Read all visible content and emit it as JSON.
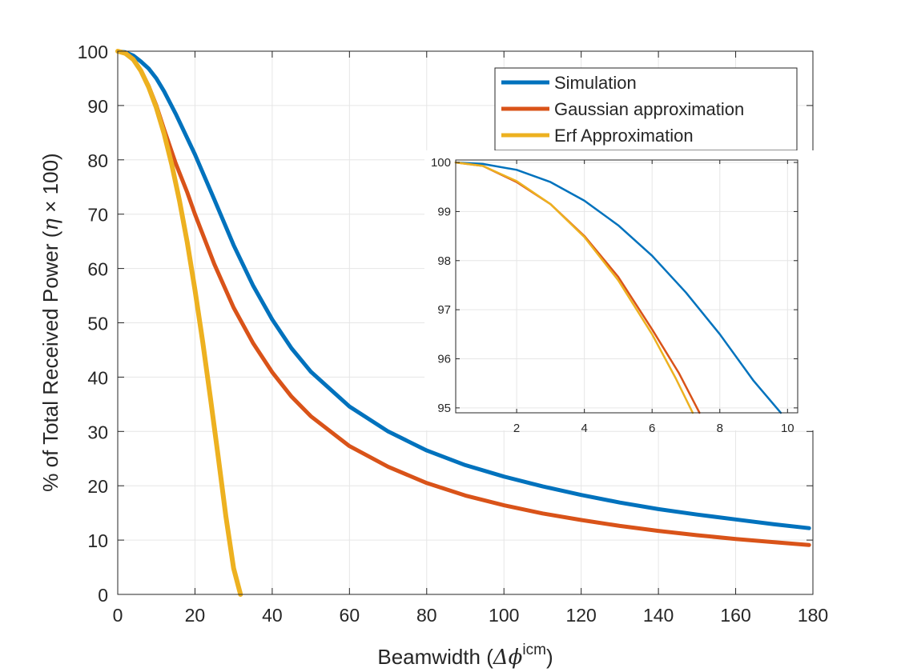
{
  "chart_data": [
    {
      "type": "line",
      "title": "",
      "xlabel": "Beamwidth (Δϕicm)",
      "xlabel_parts": {
        "main": "Beamwidth (",
        "symbol": "Δϕ",
        "superscript": "icm",
        "close": ")"
      },
      "ylabel": "% of Total Received Power (η × 100)",
      "ylabel_parts": {
        "main": "% of Total Received Power (",
        "eta": "η",
        "rest": " × 100)"
      },
      "xlim": [
        0,
        180
      ],
      "ylim": [
        0,
        100
      ],
      "xticks": [
        0,
        20,
        40,
        60,
        80,
        100,
        120,
        140,
        160,
        180
      ],
      "yticks": [
        0,
        10,
        20,
        30,
        40,
        50,
        60,
        70,
        80,
        90,
        100
      ],
      "grid": true,
      "legend_position": "top-right",
      "series": [
        {
          "name": "Simulation",
          "color": "#0072bd",
          "x": [
            0,
            2,
            4,
            6,
            8,
            10,
            12,
            15,
            20,
            25,
            30,
            35,
            40,
            45,
            50,
            60,
            70,
            80,
            90,
            100,
            110,
            120,
            130,
            140,
            150,
            160,
            170,
            179
          ],
          "y": [
            100,
            99.8,
            99.2,
            98.1,
            96.8,
            95.0,
            92.6,
            88.5,
            81.0,
            72.7,
            64.3,
            56.9,
            50.6,
            45.3,
            41.0,
            34.6,
            30.0,
            26.5,
            23.8,
            21.7,
            19.9,
            18.3,
            16.9,
            15.7,
            14.7,
            13.8,
            12.9,
            12.2
          ]
        },
        {
          "name": "Gaussian approximation",
          "color": "#d95319",
          "x": [
            0,
            2,
            4,
            6,
            8,
            10,
            12,
            15,
            18,
            20,
            25,
            30,
            35,
            40,
            45,
            50,
            60,
            70,
            80,
            90,
            100,
            110,
            120,
            130,
            140,
            150,
            160,
            170,
            179
          ],
          "y": [
            100,
            99.7,
            98.6,
            96.4,
            93.6,
            90.0,
            85.6,
            79.4,
            74.0,
            70.0,
            60.8,
            52.8,
            46.3,
            40.9,
            36.4,
            32.8,
            27.3,
            23.5,
            20.5,
            18.2,
            16.4,
            14.9,
            13.7,
            12.6,
            11.7,
            10.9,
            10.2,
            9.6,
            9.1
          ]
        },
        {
          "name": "Erf Approximation",
          "color": "#edb120",
          "x": [
            0,
            2,
            4,
            6,
            8,
            10,
            12,
            14,
            16,
            18,
            20,
            22,
            24,
            26,
            28,
            30,
            31.8
          ],
          "y": [
            100,
            99.6,
            98.5,
            96.4,
            93.4,
            89.6,
            84.8,
            79.1,
            72.4,
            64.8,
            56.1,
            46.5,
            36.2,
            25.4,
            14.4,
            4.8,
            0
          ]
        }
      ]
    },
    {
      "type": "line",
      "title": "",
      "xlabel": "",
      "ylabel": "",
      "xlim": [
        0.2,
        10.3
      ],
      "ylim": [
        94.9,
        100.05
      ],
      "xticks": [
        2,
        4,
        6,
        8,
        10
      ],
      "yticks": [
        95,
        96,
        97,
        98,
        99,
        100
      ],
      "grid": true,
      "legend_position": "none",
      "series": [
        {
          "color": "#0072bd",
          "x": [
            0.2,
            1,
            2,
            3,
            4,
            5,
            6,
            7,
            8,
            9,
            9.8
          ],
          "y": [
            100,
            99.97,
            99.85,
            99.6,
            99.22,
            98.72,
            98.1,
            97.35,
            96.5,
            95.55,
            94.9
          ]
        },
        {
          "color": "#d95319",
          "x": [
            0.2,
            1,
            2,
            3,
            4,
            5,
            6,
            6.8,
            7.4
          ],
          "y": [
            100,
            99.93,
            99.6,
            99.15,
            98.5,
            97.67,
            96.6,
            95.7,
            94.9
          ]
        },
        {
          "color": "#edb120",
          "x": [
            0.2,
            1,
            2,
            3,
            4,
            5,
            6,
            6.7,
            7.2
          ],
          "y": [
            100,
            99.93,
            99.62,
            99.15,
            98.48,
            97.6,
            96.5,
            95.6,
            94.9
          ]
        }
      ]
    }
  ]
}
